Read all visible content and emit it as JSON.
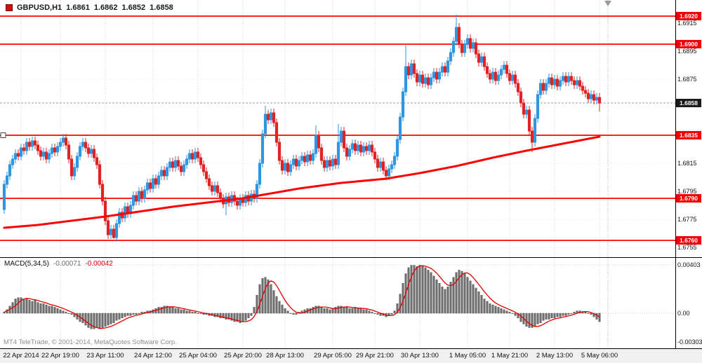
{
  "header": {
    "symbol": "GBPUSD,H1",
    "open": "1.6861",
    "high": "1.6862",
    "low": "1.6852",
    "close": "1.6858"
  },
  "macd_header": {
    "name": "MACD(5,34,5)",
    "main": "-0.00071",
    "signal": "-0.00042"
  },
  "footer": {
    "credit": "MT4 TeleTrade, © 2001-2014, MetaQuotes Software Corp."
  },
  "colors": {
    "bull": "#2f96e0",
    "bear": "#e02222",
    "ma": "#ff0000",
    "hline": "#ff0000",
    "histogram": "#6e6e6e",
    "histogram_edge": "#4a4a4a",
    "signal": "#e00000",
    "badge": "#f20000",
    "current_badge": "#1a1a1a",
    "grid": "#d8d8d8",
    "grid_h": "#ececec"
  },
  "chart_data": [
    {
      "type": "candlestick",
      "title": "GBPUSD,H1",
      "symbol": "GBPUSD",
      "timeframe": "H1",
      "ylim": [
        1.6748,
        1.69315
      ],
      "first_open": 1.6782,
      "wick": 0.0003,
      "closes": [
        1.68,
        1.6806,
        1.6814,
        1.6818,
        1.6822,
        1.682,
        1.6826,
        1.6824,
        1.683,
        1.6827,
        1.6831,
        1.6828,
        1.6824,
        1.682,
        1.6823,
        1.6818,
        1.6822,
        1.6826,
        1.6823,
        1.6827,
        1.683,
        1.6833,
        1.6828,
        1.6818,
        1.6806,
        1.6812,
        1.682,
        1.6827,
        1.683,
        1.6826,
        1.6822,
        1.6825,
        1.6819,
        1.6814,
        1.68,
        1.6788,
        1.6774,
        1.6764,
        1.6768,
        1.6762,
        1.6772,
        1.678,
        1.6776,
        1.6784,
        1.6779,
        1.6785,
        1.6792,
        1.6788,
        1.6795,
        1.679,
        1.6796,
        1.6801,
        1.6797,
        1.6804,
        1.68,
        1.6806,
        1.681,
        1.6806,
        1.6812,
        1.6816,
        1.6812,
        1.6817,
        1.6813,
        1.6809,
        1.6814,
        1.6818,
        1.6822,
        1.6818,
        1.6823,
        1.6819,
        1.6814,
        1.6809,
        1.6804,
        1.6799,
        1.6795,
        1.6799,
        1.6794,
        1.679,
        1.6786,
        1.6791,
        1.6787,
        1.6792,
        1.6788,
        1.6785,
        1.679,
        1.6787,
        1.6792,
        1.6788,
        1.6793,
        1.679,
        1.68,
        1.6815,
        1.6836,
        1.685,
        1.6846,
        1.6851,
        1.6844,
        1.683,
        1.6817,
        1.681,
        1.6815,
        1.6809,
        1.6814,
        1.6818,
        1.6813,
        1.6817,
        1.682,
        1.6816,
        1.6821,
        1.6817,
        1.6822,
        1.6835,
        1.6826,
        1.6817,
        1.6812,
        1.6817,
        1.6813,
        1.6818,
        1.6814,
        1.683,
        1.6838,
        1.6826,
        1.682,
        1.6825,
        1.6829,
        1.6824,
        1.6828,
        1.6823,
        1.6827,
        1.6824,
        1.6828,
        1.6823,
        1.6818,
        1.6812,
        1.6816,
        1.681,
        1.6806,
        1.6811,
        1.6814,
        1.682,
        1.6832,
        1.6848,
        1.6866,
        1.6884,
        1.6878,
        1.6886,
        1.6879,
        1.6873,
        1.6878,
        1.6872,
        1.6876,
        1.6871,
        1.6876,
        1.688,
        1.6875,
        1.688,
        1.6884,
        1.688,
        1.6888,
        1.6894,
        1.6902,
        1.6912,
        1.69,
        1.6894,
        1.69,
        1.6904,
        1.6897,
        1.6901,
        1.6893,
        1.6887,
        1.6891,
        1.6884,
        1.6879,
        1.6875,
        1.688,
        1.6874,
        1.6878,
        1.6882,
        1.6885,
        1.6879,
        1.6874,
        1.6878,
        1.6872,
        1.6866,
        1.6858,
        1.685,
        1.6853,
        1.6838,
        1.683,
        1.6847,
        1.6864,
        1.6872,
        1.6867,
        1.6872,
        1.6876,
        1.6871,
        1.6875,
        1.687,
        1.6874,
        1.6877,
        1.6873,
        1.6877,
        1.6874,
        1.6871,
        1.6874,
        1.687,
        1.6867,
        1.6865,
        1.6861,
        1.6864,
        1.686,
        1.6862,
        1.6858
      ],
      "extremes": {
        "39": {
          "l": 1.6761
        },
        "79": {
          "l": 1.6778
        },
        "93": {
          "h": 1.6856
        },
        "111": {
          "h": 1.6842
        },
        "119": {
          "h": 1.6843
        },
        "143": {
          "h": 1.6899
        },
        "161": {
          "h": 1.6921
        },
        "188": {
          "l": 1.6823
        },
        "212": {
          "l": 1.6852
        }
      },
      "ma": {
        "name": "moving-average",
        "points": [
          [
            0,
            1.6769
          ],
          [
            12,
            1.6771
          ],
          [
            36,
            1.6777
          ],
          [
            60,
            1.6784
          ],
          [
            85,
            1.679
          ],
          [
            105,
            1.6797
          ],
          [
            120,
            1.6801
          ],
          [
            136,
            1.6804
          ],
          [
            148,
            1.6808
          ],
          [
            161,
            1.6813
          ],
          [
            174,
            1.6819
          ],
          [
            186,
            1.6824
          ],
          [
            199,
            1.6829
          ],
          [
            212,
            1.6834
          ]
        ]
      },
      "hlines": [
        {
          "price": 1.692,
          "label": "1.6920"
        },
        {
          "price": 1.69,
          "label": "1.6900"
        },
        {
          "price": 1.6835,
          "label": "1.6835"
        },
        {
          "price": 1.679,
          "label": "1.6790"
        },
        {
          "price": 1.676,
          "label": "1.6760"
        }
      ],
      "current_price": 1.6858,
      "current_label": "1.6858",
      "y_ticks": [
        {
          "price": 1.6915,
          "label": "1.6915"
        },
        {
          "price": 1.6895,
          "label": "1.6895"
        },
        {
          "price": 1.6875,
          "label": "1.6875"
        },
        {
          "price": 1.6815,
          "label": "1.6815"
        },
        {
          "price": 1.6795,
          "label": "1.6795"
        },
        {
          "price": 1.6775,
          "label": "1.6775"
        },
        {
          "price": 1.6755,
          "label": "1.6755"
        }
      ],
      "grid_prices": [
        1.6915,
        1.6895,
        1.6875,
        1.6855,
        1.6835,
        1.6815,
        1.6795,
        1.6775,
        1.6755
      ],
      "x_ticks": [
        {
          "i": 6,
          "label": "22 Apr 2014"
        },
        {
          "i": 20,
          "label": "22 Apr 19:00"
        },
        {
          "i": 36,
          "label": "23 Apr 11:00"
        },
        {
          "i": 53,
          "label": "24 Apr 12:00"
        },
        {
          "i": 69,
          "label": "25 Apr 04:00"
        },
        {
          "i": 85,
          "label": "25 Apr 20:00"
        },
        {
          "i": 100,
          "label": "28 Apr 13:00"
        },
        {
          "i": 117,
          "label": "29 Apr 05:00"
        },
        {
          "i": 132,
          "label": "29 Apr 21:00"
        },
        {
          "i": 148,
          "label": "30 Apr 13:00"
        },
        {
          "i": 165,
          "label": "1 May 05:00"
        },
        {
          "i": 180,
          "label": "1 May 21:00"
        },
        {
          "i": 196,
          "label": "2 May 13:00"
        },
        {
          "i": 212,
          "label": "5 May 06:00"
        }
      ],
      "shift_index": 215
    },
    {
      "type": "bar",
      "title": "MACD(5,34,5)",
      "signal_period": 5,
      "ylim": [
        -0.00292,
        0.004672
      ],
      "values": [
        0.0001,
        0.0003,
        0.0006,
        0.0009,
        0.0012,
        0.0013,
        0.0013,
        0.0012,
        0.0012,
        0.0011,
        0.001,
        0.0011,
        0.0009,
        0.0008,
        0.0008,
        0.0007,
        0.0006,
        0.0006,
        0.0005,
        0.0004,
        0.0003,
        0.0002,
        0.0001,
        0.0,
        -0.0001,
        -0.0003,
        -0.0005,
        -0.0007,
        -0.0008,
        -0.001,
        -0.0012,
        -0.0013,
        -0.0013,
        -0.0012,
        -0.0013,
        -0.0012,
        -0.0011,
        -0.001,
        -0.0009,
        -0.0008,
        -0.0006,
        -0.0005,
        -0.0004,
        -0.0003,
        -0.0002,
        -0.0002,
        -0.0001,
        -0.0001,
        0.0,
        0.0001,
        0.0001,
        0.0002,
        0.0002,
        0.0003,
        0.0004,
        0.0005,
        0.0005,
        0.0006,
        0.0006,
        0.0005,
        0.0005,
        0.0004,
        0.0004,
        0.0003,
        0.0003,
        0.0002,
        0.0002,
        0.0001,
        0.0001,
        0.0,
        0.0,
        -0.0001,
        -0.0001,
        -0.0002,
        -0.0002,
        -0.0003,
        -0.0003,
        -0.0004,
        -0.0004,
        -0.0005,
        -0.0005,
        -0.0006,
        -0.0007,
        -0.0007,
        -0.0008,
        -0.0007,
        -0.0006,
        -0.0004,
        -0.0002,
        0.0005,
        0.0015,
        0.0024,
        0.0029,
        0.003,
        0.0028,
        0.0024,
        0.0019,
        0.0014,
        0.001,
        0.0007,
        0.0004,
        0.0002,
        0.0,
        -0.0001,
        -0.0001,
        0.0001,
        0.0002,
        0.0003,
        0.0004,
        0.0004,
        0.0005,
        0.0006,
        0.0006,
        0.0005,
        0.0004,
        0.0004,
        0.0003,
        0.0004,
        0.0005,
        0.0006,
        0.0006,
        0.0005,
        0.0005,
        0.0004,
        0.0004,
        0.0005,
        0.0004,
        0.0004,
        0.0003,
        0.0003,
        0.0002,
        0.0001,
        0.0,
        -0.0001,
        -0.0002,
        -0.0002,
        -0.0003,
        -0.0002,
        -0.0001,
        0.0002,
        0.0008,
        0.0016,
        0.0025,
        0.0033,
        0.0038,
        0.004,
        0.004,
        0.0039,
        0.004,
        0.0039,
        0.0038,
        0.0036,
        0.0034,
        0.0031,
        0.0028,
        0.0025,
        0.0022,
        0.002,
        0.0022,
        0.0026,
        0.003,
        0.0034,
        0.0036,
        0.0035,
        0.0033,
        0.003,
        0.0027,
        0.0024,
        0.0021,
        0.0018,
        0.0015,
        0.0012,
        0.001,
        0.0008,
        0.0007,
        0.0006,
        0.0005,
        0.0004,
        0.0003,
        0.0002,
        0.0001,
        0.0,
        -0.0002,
        -0.0004,
        -0.0007,
        -0.0009,
        -0.0011,
        -0.0012,
        -0.0012,
        -0.0011,
        -0.0009,
        -0.0008,
        -0.0006,
        -0.0005,
        -0.0005,
        -0.0004,
        -0.0004,
        -0.0003,
        -0.0003,
        -0.0002,
        -0.0002,
        -0.0001,
        0.0,
        0.0001,
        0.0002,
        0.0002,
        0.0001,
        0.0001,
        0.0,
        -0.0001,
        -0.0003,
        -0.0005,
        -0.0007
      ],
      "y_ticks": [
        {
          "v": 0.00403,
          "label": "0.00403"
        },
        {
          "v": 0.0,
          "label": "0.00"
        },
        {
          "v": -0.00303,
          "label": "-0.00303"
        }
      ]
    }
  ]
}
